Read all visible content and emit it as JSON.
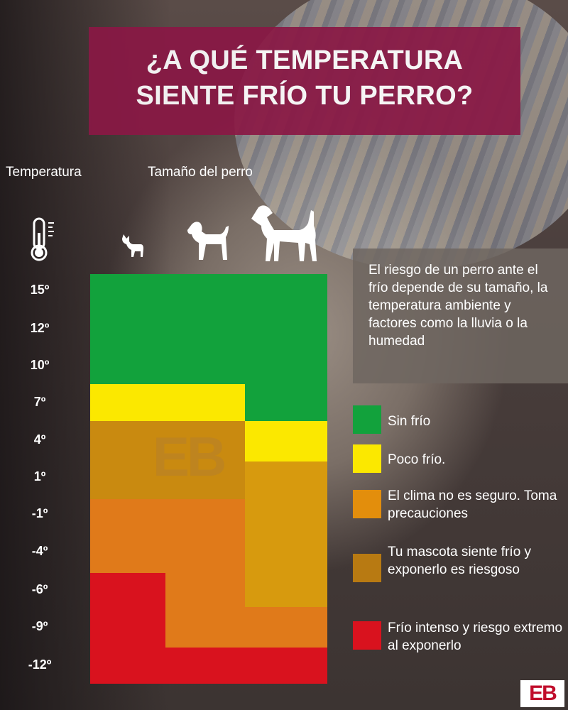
{
  "title": {
    "line1": "¿A QUÉ TEMPERATURA",
    "line2": "SIENTE FRÍO TU PERRO?"
  },
  "headers": {
    "temperature": "Temperatura",
    "dog_size": "Tamaño del perro"
  },
  "icons": [
    "thermometer-icon",
    "small-dog-icon",
    "medium-dog-icon",
    "large-dog-icon"
  ],
  "temperatures": [
    "15º",
    "12º",
    "10º",
    "7º",
    "4º",
    "1º",
    "-1º",
    "-4º",
    "-6º",
    "-9º",
    "-12º"
  ],
  "sizes": [
    "small",
    "medium",
    "large"
  ],
  "colors": {
    "sin_frio": "#12a23c",
    "poco_frio": "#fbe800",
    "no_seguro": "#e38e0c",
    "siente_frio": "#b87a12",
    "frio_intenso": "#d9121e",
    "title_bg": "#8a1845"
  },
  "info_text": "El riesgo de un perro ante el frío depende de su tamaño, la temperatura ambiente y factores como la lluvia o la humedad",
  "legend": [
    {
      "label": "Sin frío",
      "color": "#12a23c"
    },
    {
      "label": "Poco frío.",
      "color": "#fbe800"
    },
    {
      "label": "El clima no es seguro. Toma precauciones",
      "color": "#e38e0c"
    },
    {
      "label": "Tu mascota siente frío y exponerlo es riesgoso",
      "color": "#b87a12"
    },
    {
      "label": "Frío intenso y riesgo extremo al exponerlo",
      "color": "#d9121e"
    }
  ],
  "watermark": "EB",
  "logo": "EB"
}
